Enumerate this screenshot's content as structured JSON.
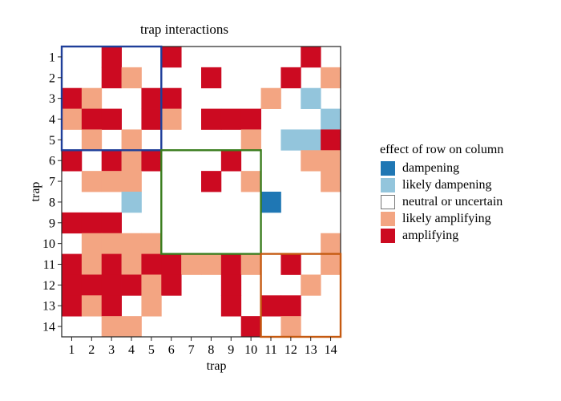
{
  "chart_data": {
    "type": "heatmap",
    "title": "trap interactions",
    "xlabel": "trap",
    "ylabel": "trap",
    "x_categories": [
      "1",
      "2",
      "3",
      "4",
      "5",
      "6",
      "7",
      "8",
      "9",
      "10",
      "11",
      "12",
      "13",
      "14"
    ],
    "y_categories": [
      "1",
      "2",
      "3",
      "4",
      "5",
      "6",
      "7",
      "8",
      "9",
      "10",
      "11",
      "12",
      "13",
      "14"
    ],
    "levels": [
      "dampening",
      "likely dampening",
      "neutral or uncertain",
      "likely amplifying",
      "amplifying"
    ],
    "level_codes": {
      "-2": "dampening",
      "-1": "likely dampening",
      "0": "neutral or uncertain",
      "1": "likely amplifying",
      "2": "amplifying"
    },
    "colors": {
      "dampening": "#1f77b4",
      "likely dampening": "#93c5dc",
      "neutral or uncertain": "#ffffff",
      "likely amplifying": "#f3a582",
      "amplifying": "#cc0a21"
    },
    "matrix": [
      [
        0,
        0,
        2,
        0,
        0,
        2,
        0,
        0,
        0,
        0,
        0,
        0,
        2,
        0
      ],
      [
        0,
        0,
        2,
        1,
        0,
        0,
        0,
        2,
        0,
        0,
        0,
        2,
        0,
        1
      ],
      [
        2,
        1,
        0,
        0,
        2,
        2,
        0,
        0,
        0,
        0,
        1,
        0,
        -1,
        0
      ],
      [
        1,
        2,
        2,
        0,
        2,
        1,
        0,
        2,
        2,
        2,
        0,
        0,
        0,
        -1
      ],
      [
        0,
        1,
        0,
        1,
        0,
        0,
        0,
        0,
        0,
        1,
        0,
        -1,
        -1,
        2
      ],
      [
        2,
        0,
        2,
        1,
        2,
        0,
        0,
        0,
        2,
        0,
        0,
        0,
        1,
        1
      ],
      [
        0,
        1,
        1,
        1,
        0,
        0,
        0,
        2,
        0,
        1,
        0,
        0,
        0,
        1
      ],
      [
        0,
        0,
        0,
        -1,
        0,
        0,
        0,
        0,
        0,
        0,
        -2,
        0,
        0,
        0
      ],
      [
        2,
        2,
        2,
        0,
        0,
        0,
        0,
        0,
        0,
        0,
        0,
        0,
        0,
        0
      ],
      [
        0,
        1,
        1,
        1,
        1,
        0,
        0,
        0,
        0,
        0,
        0,
        0,
        0,
        1
      ],
      [
        2,
        1,
        2,
        1,
        2,
        2,
        1,
        1,
        2,
        1,
        0,
        2,
        0,
        1
      ],
      [
        2,
        2,
        2,
        2,
        1,
        2,
        0,
        0,
        2,
        0,
        0,
        0,
        1,
        0
      ],
      [
        2,
        1,
        2,
        0,
        1,
        0,
        0,
        0,
        2,
        0,
        2,
        2,
        0,
        0
      ],
      [
        0,
        0,
        1,
        1,
        0,
        0,
        0,
        0,
        0,
        2,
        0,
        1,
        0,
        0
      ]
    ],
    "cluster_boxes": [
      {
        "from": 1,
        "to": 5,
        "color": "#1f3f9a"
      },
      {
        "from": 6,
        "to": 10,
        "color": "#3a7d1e"
      },
      {
        "from": 11,
        "to": 14,
        "color": "#c55a11"
      }
    ],
    "legend": {
      "title": "effect of row on column",
      "placement": "right",
      "items": [
        "dampening",
        "likely dampening",
        "neutral or uncertain",
        "likely amplifying",
        "amplifying"
      ]
    }
  }
}
